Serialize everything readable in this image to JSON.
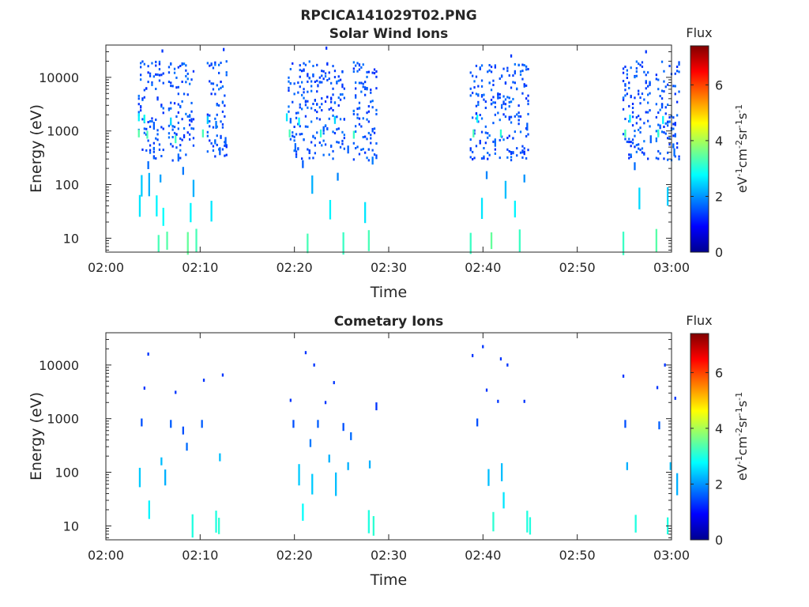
{
  "figure": {
    "title": "RPCICA141029T02.PNG"
  },
  "chart_data": [
    {
      "type": "heatmap",
      "title": "Solar Wind Ions",
      "xlabel": "Time",
      "ylabel": "Energy (eV)",
      "xlim": [
        "02:00",
        "03:00"
      ],
      "ylim": [
        5.5,
        40000
      ],
      "yscale": "log",
      "xticks": [
        "02:00",
        "02:10",
        "02:20",
        "02:30",
        "02:40",
        "02:50",
        "03:00"
      ],
      "yticks": [
        "10",
        "100",
        "1000",
        "10000"
      ],
      "colorbar": {
        "label": "Flux",
        "units": "eV-1cm-2sr-1s-1",
        "range": [
          0,
          7.4
        ],
        "ticks": [
          "0",
          "2",
          "4",
          "6"
        ],
        "colormap": "jet"
      },
      "bursts_minutes": [
        [
          3.4,
          6.2
        ],
        [
          6.6,
          9.3
        ],
        [
          10.7,
          12.8
        ],
        [
          19.3,
          22.4
        ],
        [
          22.6,
          25.3
        ],
        [
          26.2,
          28.6
        ],
        [
          38.6,
          41.3
        ],
        [
          41.5,
          44.9
        ],
        [
          54.8,
          57.8
        ],
        [
          58.3,
          60.8
        ]
      ],
      "cells": [
        {
          "t": 3.4,
          "e": 1800,
          "f": 2.7
        },
        {
          "t": 3.4,
          "e": 900,
          "f": 3.4
        },
        {
          "t": 3.5,
          "e": 40,
          "f": 2.6
        },
        {
          "t": 3.7,
          "e": 95,
          "f": 2.4
        },
        {
          "t": 4.0,
          "e": 1700,
          "f": 2.9
        },
        {
          "t": 4.3,
          "e": 850,
          "f": 3.3
        },
        {
          "t": 4.4,
          "e": 230,
          "f": 1.7
        },
        {
          "t": 4.5,
          "e": 100,
          "f": 2.2
        },
        {
          "t": 5.0,
          "e": 1250,
          "f": 1.6
        },
        {
          "t": 5.3,
          "e": 40,
          "f": 2.7
        },
        {
          "t": 5.5,
          "e": 8,
          "f": 3.3
        },
        {
          "t": 5.7,
          "e": 130,
          "f": 2.1
        },
        {
          "t": 5.9,
          "e": 31000,
          "f": 1.3
        },
        {
          "t": 6.0,
          "e": 25,
          "f": 2.8
        },
        {
          "t": 6.4,
          "e": 9,
          "f": 3.4
        },
        {
          "t": 6.8,
          "e": 1500,
          "f": 2.5
        },
        {
          "t": 7.3,
          "e": 700,
          "f": 3.2
        },
        {
          "t": 7.6,
          "e": 320,
          "f": 1.7
        },
        {
          "t": 8.1,
          "e": 180,
          "f": 1.8
        },
        {
          "t": 8.6,
          "e": 8,
          "f": 3.5
        },
        {
          "t": 8.9,
          "e": 30,
          "f": 2.7
        },
        {
          "t": 9.2,
          "e": 85,
          "f": 2.2
        },
        {
          "t": 9.5,
          "e": 9,
          "f": 3.3
        },
        {
          "t": 10.2,
          "e": 900,
          "f": 3.3
        },
        {
          "t": 10.7,
          "e": 1600,
          "f": 2.4
        },
        {
          "t": 11.1,
          "e": 32,
          "f": 2.6
        },
        {
          "t": 11.6,
          "e": 1300,
          "f": 1.8
        },
        {
          "t": 12.0,
          "e": 420,
          "f": 1.6
        },
        {
          "t": 12.4,
          "e": 33000,
          "f": 1.3
        },
        {
          "t": 12.6,
          "e": 650,
          "f": 1.6
        },
        {
          "t": 19.1,
          "e": 1800,
          "f": 2.6
        },
        {
          "t": 19.4,
          "e": 900,
          "f": 3.3
        },
        {
          "t": 20.0,
          "e": 500,
          "f": 1.7
        },
        {
          "t": 20.4,
          "e": 1500,
          "f": 2.8
        },
        {
          "t": 20.8,
          "e": 240,
          "f": 1.6
        },
        {
          "t": 21.3,
          "e": 8,
          "f": 3.3
        },
        {
          "t": 21.8,
          "e": 100,
          "f": 2.2
        },
        {
          "t": 22.4,
          "e": 7000,
          "f": 1.4
        },
        {
          "t": 22.7,
          "e": 900,
          "f": 3.1
        },
        {
          "t": 23.3,
          "e": 35000,
          "f": 1.3
        },
        {
          "t": 23.7,
          "e": 34,
          "f": 2.7
        },
        {
          "t": 24.2,
          "e": 1600,
          "f": 2.5
        },
        {
          "t": 24.5,
          "e": 140,
          "f": 1.9
        },
        {
          "t": 25.1,
          "e": 8,
          "f": 3.2
        },
        {
          "t": 25.6,
          "e": 450,
          "f": 1.6
        },
        {
          "t": 26.2,
          "e": 850,
          "f": 3.2
        },
        {
          "t": 26.8,
          "e": 17000,
          "f": 1.4
        },
        {
          "t": 27.4,
          "e": 30,
          "f": 2.6
        },
        {
          "t": 27.8,
          "e": 9,
          "f": 3.3
        },
        {
          "t": 28.2,
          "e": 280,
          "f": 1.8
        },
        {
          "t": 38.6,
          "e": 8,
          "f": 3.2
        },
        {
          "t": 38.9,
          "e": 900,
          "f": 3.3
        },
        {
          "t": 39.3,
          "e": 1700,
          "f": 2.8
        },
        {
          "t": 39.8,
          "e": 36,
          "f": 2.6
        },
        {
          "t": 40.3,
          "e": 150,
          "f": 1.9
        },
        {
          "t": 40.8,
          "e": 9,
          "f": 3.5
        },
        {
          "t": 41.2,
          "e": 600,
          "f": 1.7
        },
        {
          "t": 41.8,
          "e": 900,
          "f": 3.1
        },
        {
          "t": 42.3,
          "e": 80,
          "f": 2.3
        },
        {
          "t": 42.9,
          "e": 25000,
          "f": 1.3
        },
        {
          "t": 43.3,
          "e": 35,
          "f": 2.7
        },
        {
          "t": 43.8,
          "e": 9,
          "f": 3.2
        },
        {
          "t": 44.3,
          "e": 130,
          "f": 2.0
        },
        {
          "t": 44.6,
          "e": 1200,
          "f": 1.6
        },
        {
          "t": 54.8,
          "e": 8,
          "f": 3.2
        },
        {
          "t": 55.0,
          "e": 900,
          "f": 3.3
        },
        {
          "t": 55.5,
          "e": 1700,
          "f": 2.7
        },
        {
          "t": 56.0,
          "e": 220,
          "f": 1.7
        },
        {
          "t": 56.5,
          "e": 55,
          "f": 2.5
        },
        {
          "t": 57.2,
          "e": 30000,
          "f": 1.3
        },
        {
          "t": 57.7,
          "e": 700,
          "f": 1.6
        },
        {
          "t": 58.3,
          "e": 9,
          "f": 3.4
        },
        {
          "t": 58.5,
          "e": 900,
          "f": 3.1
        },
        {
          "t": 59.0,
          "e": 1600,
          "f": 2.7
        },
        {
          "t": 59.5,
          "e": 60,
          "f": 2.4
        },
        {
          "t": 60.2,
          "e": 400,
          "f": 1.7
        }
      ]
    },
    {
      "type": "heatmap",
      "title": "Cometary Ions",
      "xlabel": "Time",
      "ylabel": "Energy (eV)",
      "xlim": [
        "02:00",
        "03:00"
      ],
      "ylim": [
        5.5,
        40000
      ],
      "yscale": "log",
      "xticks": [
        "02:00",
        "02:10",
        "02:20",
        "02:30",
        "02:40",
        "02:50",
        "03:00"
      ],
      "yticks": [
        "10",
        "100",
        "1000",
        "10000"
      ],
      "colorbar": {
        "label": "Flux",
        "units": "eV-1cm-2sr-1s-1",
        "range": [
          0,
          7.4
        ],
        "ticks": [
          "0",
          "2",
          "4",
          "6"
        ],
        "colormap": "jet"
      },
      "cells": [
        {
          "t": 3.5,
          "e": 80,
          "f": 2.4
        },
        {
          "t": 3.7,
          "e": 850,
          "f": 1.5
        },
        {
          "t": 4.0,
          "e": 3700,
          "f": 1.3
        },
        {
          "t": 4.4,
          "e": 16000,
          "f": 1.3
        },
        {
          "t": 4.5,
          "e": 20,
          "f": 2.7
        },
        {
          "t": 5.8,
          "e": 160,
          "f": 2.3
        },
        {
          "t": 6.2,
          "e": 80,
          "f": 2.2
        },
        {
          "t": 6.8,
          "e": 800,
          "f": 1.6
        },
        {
          "t": 7.3,
          "e": 3100,
          "f": 1.3
        },
        {
          "t": 8.1,
          "e": 600,
          "f": 1.5
        },
        {
          "t": 8.5,
          "e": 300,
          "f": 1.7
        },
        {
          "t": 9.1,
          "e": 10,
          "f": 3.0
        },
        {
          "t": 10.1,
          "e": 800,
          "f": 1.6
        },
        {
          "t": 10.3,
          "e": 5200,
          "f": 1.3
        },
        {
          "t": 11.6,
          "e": 12,
          "f": 3.0
        },
        {
          "t": 11.9,
          "e": 10,
          "f": 3.1
        },
        {
          "t": 12.0,
          "e": 190,
          "f": 2.3
        },
        {
          "t": 12.3,
          "e": 6500,
          "f": 1.3
        },
        {
          "t": 19.5,
          "e": 2200,
          "f": 1.3
        },
        {
          "t": 19.8,
          "e": 800,
          "f": 1.5
        },
        {
          "t": 20.4,
          "e": 90,
          "f": 2.4
        },
        {
          "t": 20.8,
          "e": 18,
          "f": 2.8
        },
        {
          "t": 21.1,
          "e": 17000,
          "f": 1.3
        },
        {
          "t": 21.6,
          "e": 350,
          "f": 1.8
        },
        {
          "t": 21.8,
          "e": 60,
          "f": 2.4
        },
        {
          "t": 22.0,
          "e": 10000,
          "f": 1.3
        },
        {
          "t": 22.4,
          "e": 800,
          "f": 1.6
        },
        {
          "t": 23.2,
          "e": 2000,
          "f": 1.3
        },
        {
          "t": 23.6,
          "e": 180,
          "f": 2.2
        },
        {
          "t": 24.1,
          "e": 4700,
          "f": 1.3
        },
        {
          "t": 24.3,
          "e": 60,
          "f": 2.3
        },
        {
          "t": 25.1,
          "e": 700,
          "f": 1.5
        },
        {
          "t": 25.6,
          "e": 130,
          "f": 2.2
        },
        {
          "t": 25.9,
          "e": 470,
          "f": 1.7
        },
        {
          "t": 27.8,
          "e": 12,
          "f": 3.0
        },
        {
          "t": 27.9,
          "e": 140,
          "f": 2.2
        },
        {
          "t": 28.3,
          "e": 10,
          "f": 3.1
        },
        {
          "t": 28.6,
          "e": 1700,
          "f": 1.3
        },
        {
          "t": 38.8,
          "e": 15000,
          "f": 1.3
        },
        {
          "t": 39.3,
          "e": 850,
          "f": 1.5
        },
        {
          "t": 39.9,
          "e": 22000,
          "f": 1.3
        },
        {
          "t": 40.3,
          "e": 3400,
          "f": 1.3
        },
        {
          "t": 40.5,
          "e": 80,
          "f": 2.3
        },
        {
          "t": 41.0,
          "e": 12,
          "f": 3.1
        },
        {
          "t": 41.5,
          "e": 2100,
          "f": 1.3
        },
        {
          "t": 41.8,
          "e": 13000,
          "f": 1.3
        },
        {
          "t": 41.9,
          "e": 100,
          "f": 2.3
        },
        {
          "t": 42.1,
          "e": 30,
          "f": 2.6
        },
        {
          "t": 42.5,
          "e": 10000,
          "f": 1.3
        },
        {
          "t": 44.3,
          "e": 2100,
          "f": 1.3
        },
        {
          "t": 44.6,
          "e": 12,
          "f": 3.0
        },
        {
          "t": 44.9,
          "e": 10,
          "f": 3.0
        },
        {
          "t": 54.8,
          "e": 6200,
          "f": 1.3
        },
        {
          "t": 55.0,
          "e": 800,
          "f": 1.5
        },
        {
          "t": 55.2,
          "e": 130,
          "f": 2.2
        },
        {
          "t": 56.1,
          "e": 11,
          "f": 3.0
        },
        {
          "t": 58.4,
          "e": 3800,
          "f": 1.3
        },
        {
          "t": 58.6,
          "e": 750,
          "f": 1.6
        },
        {
          "t": 59.2,
          "e": 10000,
          "f": 1.3
        },
        {
          "t": 59.5,
          "e": 10,
          "f": 3.0
        },
        {
          "t": 59.8,
          "e": 130,
          "f": 2.3
        },
        {
          "t": 60.3,
          "e": 2400,
          "f": 1.3
        },
        {
          "t": 60.5,
          "e": 60,
          "f": 2.2
        }
      ]
    }
  ]
}
